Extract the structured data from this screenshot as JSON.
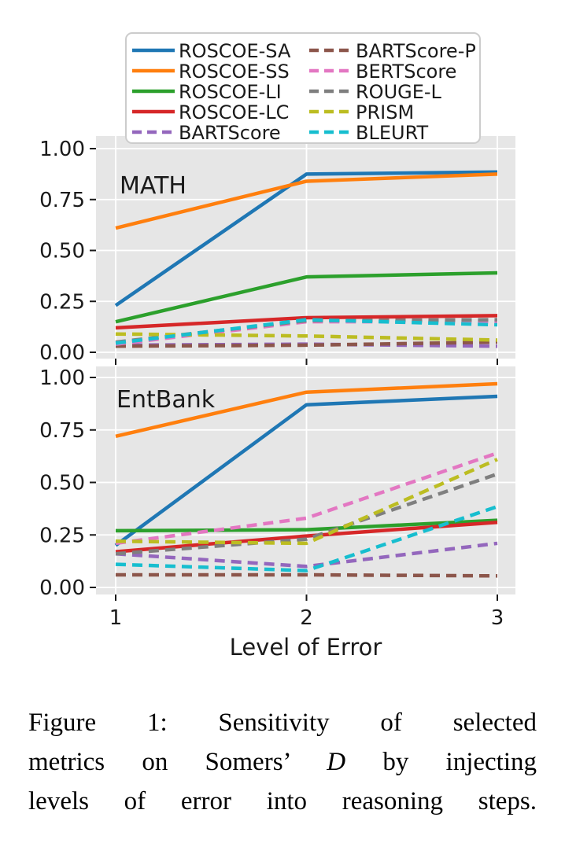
{
  "figure": {
    "xlabel": "Level of Error",
    "x_tick_labels": [
      "1",
      "2",
      "3"
    ],
    "x_tick_values": [
      1,
      2,
      3
    ],
    "y_tick_labels": [
      "0.00",
      "0.25",
      "0.50",
      "0.75",
      "1.00"
    ],
    "y_tick_values": [
      0,
      0.25,
      0.5,
      0.75,
      1
    ],
    "plot_background": "#e6e6e6",
    "grid_color": "#ffffff",
    "tick_color": "#1a1a1a",
    "legend_border_color": "#cccccc",
    "legend_background": "#ffffff",
    "legend_columns": 2
  },
  "chart_data": [
    {
      "type": "line",
      "title": "MATH",
      "x": [
        1,
        2,
        3
      ],
      "xlabel": "Level of Error",
      "ylabel": "",
      "ylim": [
        0,
        1
      ],
      "legend_position": "top",
      "grid": true,
      "series": [
        {
          "name": "ROSCOE-SA",
          "color": "#1f77b4",
          "style": "solid",
          "values": [
            0.23,
            0.875,
            0.885
          ]
        },
        {
          "name": "ROSCOE-SS",
          "color": "#ff7f0e",
          "style": "solid",
          "values": [
            0.61,
            0.84,
            0.875
          ]
        },
        {
          "name": "ROSCOE-LI",
          "color": "#2ca02c",
          "style": "solid",
          "values": [
            0.15,
            0.37,
            0.39
          ]
        },
        {
          "name": "ROSCOE-LC",
          "color": "#d62728",
          "style": "solid",
          "values": [
            0.12,
            0.17,
            0.18
          ]
        },
        {
          "name": "BARTScore",
          "color": "#9467bd",
          "style": "dashed",
          "values": [
            0.035,
            0.04,
            0.03
          ]
        },
        {
          "name": "BARTScore-P",
          "color": "#8c564b",
          "style": "dashed",
          "values": [
            0.03,
            0.035,
            0.05
          ]
        },
        {
          "name": "BERTScore",
          "color": "#e377c2",
          "style": "dashed",
          "values": [
            0.04,
            0.15,
            0.15
          ]
        },
        {
          "name": "ROUGE-L",
          "color": "#7f7f7f",
          "style": "dashed",
          "values": [
            0.05,
            0.155,
            0.16
          ]
        },
        {
          "name": "PRISM",
          "color": "#bcbd22",
          "style": "dashed",
          "values": [
            0.09,
            0.08,
            0.06
          ]
        },
        {
          "name": "BLEURT",
          "color": "#17becf",
          "style": "dashed",
          "values": [
            0.045,
            0.16,
            0.135
          ]
        }
      ]
    },
    {
      "type": "line",
      "title": "EntBank",
      "x": [
        1,
        2,
        3
      ],
      "xlabel": "Level of Error",
      "ylabel": "",
      "ylim": [
        0,
        1
      ],
      "grid": true,
      "series": [
        {
          "name": "ROSCOE-SA",
          "color": "#1f77b4",
          "style": "solid",
          "values": [
            0.2,
            0.87,
            0.91
          ]
        },
        {
          "name": "ROSCOE-SS",
          "color": "#ff7f0e",
          "style": "solid",
          "values": [
            0.72,
            0.93,
            0.97
          ]
        },
        {
          "name": "ROSCOE-LI",
          "color": "#2ca02c",
          "style": "solid",
          "values": [
            0.27,
            0.275,
            0.32
          ]
        },
        {
          "name": "ROSCOE-LC",
          "color": "#d62728",
          "style": "solid",
          "values": [
            0.17,
            0.245,
            0.31
          ]
        },
        {
          "name": "BARTScore",
          "color": "#9467bd",
          "style": "dashed",
          "values": [
            0.16,
            0.1,
            0.21
          ]
        },
        {
          "name": "BARTScore-P",
          "color": "#8c564b",
          "style": "dashed",
          "values": [
            0.06,
            0.06,
            0.055
          ]
        },
        {
          "name": "BERTScore",
          "color": "#e377c2",
          "style": "dashed",
          "values": [
            0.21,
            0.33,
            0.64
          ]
        },
        {
          "name": "ROUGE-L",
          "color": "#7f7f7f",
          "style": "dashed",
          "values": [
            0.16,
            0.23,
            0.54
          ]
        },
        {
          "name": "PRISM",
          "color": "#bcbd22",
          "style": "dashed",
          "values": [
            0.22,
            0.21,
            0.61
          ]
        },
        {
          "name": "BLEURT",
          "color": "#17becf",
          "style": "dashed",
          "values": [
            0.11,
            0.08,
            0.385
          ]
        }
      ]
    }
  ],
  "caption": {
    "line1": "Figure 1:  Sensitivity of selected",
    "line2_pre": "metrics on Somers’ ",
    "line2_em": "D",
    "line2_post": " by injecting",
    "line3": "levels of error into reasoning steps."
  }
}
